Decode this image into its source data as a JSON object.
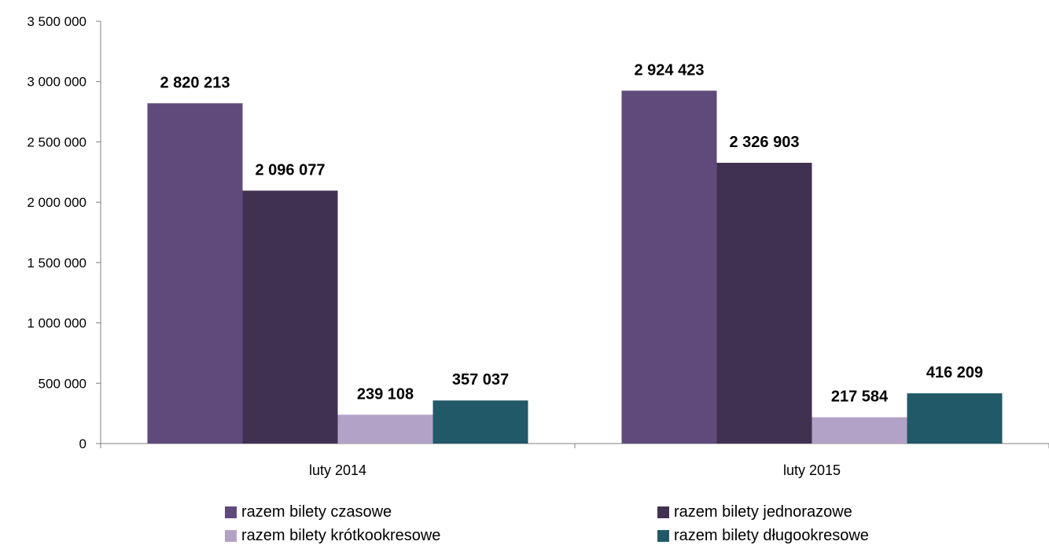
{
  "chart_data": {
    "type": "bar",
    "categories": [
      "luty 2014",
      "luty 2015"
    ],
    "series": [
      {
        "name": "razem bilety czasowe",
        "values": [
          2820213,
          2924423
        ],
        "labels": [
          "2 820 213",
          "2 924 423"
        ],
        "color": "#604A7B"
      },
      {
        "name": "razem bilety jednorazowe",
        "values": [
          2096077,
          2326903
        ],
        "labels": [
          "2 096 077",
          "2 326 903"
        ],
        "color": "#403151"
      },
      {
        "name": "razem bilety krótkookresowe",
        "values": [
          239108,
          217584
        ],
        "labels": [
          "239 108",
          "217 584"
        ],
        "color": "#B3A2C7"
      },
      {
        "name": "razem bilety długookresowe",
        "values": [
          357037,
          416209
        ],
        "labels": [
          "357 037",
          "416 209"
        ],
        "color": "#215968"
      }
    ],
    "yticks": [
      0,
      500000,
      1000000,
      1500000,
      2000000,
      2500000,
      3000000,
      3500000
    ],
    "ytick_labels": [
      "0",
      "500 000",
      "1 000 000",
      "1 500 000",
      "2 000 000",
      "2 500 000",
      "3 000 000",
      "3 500 000"
    ],
    "ylim": [
      0,
      3500000
    ],
    "grid": false,
    "legend_position": "bottom"
  }
}
